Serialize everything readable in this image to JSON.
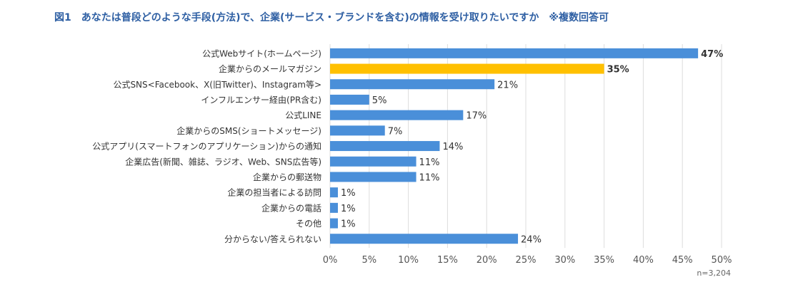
{
  "chart_data": {
    "type": "bar",
    "orientation": "horizontal",
    "title": "図1　あなたは普段どのような手段(方法)で、企業(サービス・ブランドを含む)の情報を受け取りたいですか　※複数回答可",
    "categories": [
      "公式Webサイト(ホームページ)",
      "企業からのメールマガジン",
      "公式SNS<Facebook、X(旧Twitter)、Instagram等>",
      "インフルエンサー経由(PR含む)",
      "公式LINE",
      "企業からのSMS(ショートメッセージ)",
      "公式アプリ(スマートフォンのアプリケーション)からの通知",
      "企業広告(新聞、雑誌、ラジオ、Web、SNS広告等)",
      "企業からの郵送物",
      "企業の担当者による訪問",
      "企業からの電話",
      "その他",
      "分からない/答えられない"
    ],
    "values": [
      47,
      35,
      21,
      5,
      17,
      7,
      14,
      11,
      11,
      1,
      1,
      1,
      24
    ],
    "value_labels": [
      "47%",
      "35%",
      "21%",
      "5%",
      "17%",
      "7%",
      "14%",
      "11%",
      "11%",
      "1%",
      "1%",
      "1%",
      "24%"
    ],
    "bold_labels": [
      0,
      1
    ],
    "highlight_index": 1,
    "xlim": [
      0,
      50
    ],
    "xticks": [
      0,
      5,
      10,
      15,
      20,
      25,
      30,
      35,
      40,
      45,
      50
    ],
    "xtick_labels": [
      "0%",
      "5%",
      "10%",
      "15%",
      "20%",
      "25%",
      "30%",
      "35%",
      "40%",
      "45%",
      "50%"
    ],
    "grid": true,
    "colors": {
      "bar": "#4a8fd9",
      "highlight": "#ffc000",
      "grid": "#dddddd"
    },
    "note": "n=3,204"
  }
}
